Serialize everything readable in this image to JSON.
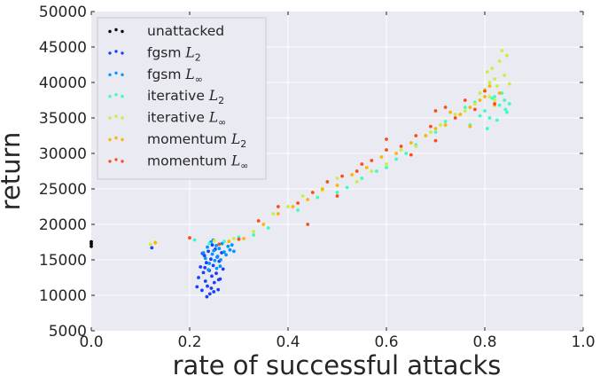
{
  "chart_data": {
    "type": "scatter",
    "title": "",
    "xlabel": "rate of successful attacks",
    "ylabel": "return",
    "xlim": [
      0.0,
      1.0
    ],
    "ylim": [
      5000,
      50000
    ],
    "xticks": [
      "0.0",
      "0.2",
      "0.4",
      "0.6",
      "0.8",
      "1.0"
    ],
    "yticks": [
      "5000",
      "10000",
      "15000",
      "20000",
      "25000",
      "30000",
      "35000",
      "40000",
      "45000",
      "50000"
    ],
    "grid": true,
    "legend_position": "top-left",
    "series": [
      {
        "name": "unattacked",
        "name_main": "unattacked",
        "name_sub": "",
        "name_sup": "",
        "color": "#000000",
        "points": [
          [
            0.0,
            17250
          ],
          [
            0.0,
            16900
          ],
          [
            0.0,
            17550
          ]
        ]
      },
      {
        "name": "fgsm L2",
        "name_main": "fgsm ",
        "name_sub": "2",
        "name_sup": "",
        "color": "#1a3dff",
        "points": [
          [
            0.123,
            16700
          ],
          [
            0.215,
            11200
          ],
          [
            0.218,
            12500
          ],
          [
            0.222,
            14000
          ],
          [
            0.225,
            10700
          ],
          [
            0.228,
            13200
          ],
          [
            0.23,
            15600
          ],
          [
            0.232,
            12000
          ],
          [
            0.234,
            14600
          ],
          [
            0.236,
            11300
          ],
          [
            0.238,
            16200
          ],
          [
            0.24,
            13500
          ],
          [
            0.241,
            10200
          ],
          [
            0.243,
            15100
          ],
          [
            0.245,
            12700
          ],
          [
            0.246,
            17100
          ],
          [
            0.248,
            14200
          ],
          [
            0.25,
            11800
          ],
          [
            0.252,
            16500
          ],
          [
            0.254,
            13100
          ],
          [
            0.256,
            15400
          ],
          [
            0.258,
            10800
          ],
          [
            0.26,
            14800
          ],
          [
            0.262,
            12300
          ],
          [
            0.265,
            16000
          ],
          [
            0.268,
            13700
          ],
          [
            0.235,
            9800
          ],
          [
            0.226,
            15900
          ],
          [
            0.249,
            10500
          ],
          [
            0.259,
            12200
          ],
          [
            0.231,
            13900
          ],
          [
            0.244,
            11000
          ]
        ]
      },
      {
        "name": "fgsm L∞",
        "name_main": "fgsm ",
        "name_sub": "",
        "name_sup": "∞",
        "color": "#0096ff",
        "points": [
          [
            0.228,
            16000
          ],
          [
            0.232,
            15200
          ],
          [
            0.236,
            16800
          ],
          [
            0.24,
            14500
          ],
          [
            0.243,
            17500
          ],
          [
            0.246,
            15800
          ],
          [
            0.249,
            16300
          ],
          [
            0.251,
            14900
          ],
          [
            0.254,
            17000
          ],
          [
            0.257,
            15500
          ],
          [
            0.26,
            16600
          ],
          [
            0.263,
            15000
          ],
          [
            0.266,
            17300
          ],
          [
            0.27,
            16100
          ],
          [
            0.274,
            15700
          ],
          [
            0.278,
            16900
          ],
          [
            0.282,
            16400
          ],
          [
            0.286,
            17100
          ],
          [
            0.29,
            16200
          ],
          [
            0.255,
            13800
          ],
          [
            0.238,
            13600
          ],
          [
            0.248,
            17800
          ],
          [
            0.262,
            14100
          ]
        ]
      },
      {
        "name": "iterative L2",
        "name_main": "iterative ",
        "name_sub": "2",
        "name_sup": "",
        "color": "#38ffc0",
        "points": [
          [
            0.21,
            17800
          ],
          [
            0.24,
            17300
          ],
          [
            0.27,
            17600
          ],
          [
            0.3,
            18200
          ],
          [
            0.33,
            18500
          ],
          [
            0.36,
            19500
          ],
          [
            0.42,
            22000
          ],
          [
            0.46,
            23800
          ],
          [
            0.5,
            24500
          ],
          [
            0.52,
            25200
          ],
          [
            0.55,
            26500
          ],
          [
            0.58,
            27500
          ],
          [
            0.6,
            28000
          ],
          [
            0.62,
            29200
          ],
          [
            0.64,
            30000
          ],
          [
            0.66,
            31200
          ],
          [
            0.68,
            32500
          ],
          [
            0.7,
            33000
          ],
          [
            0.72,
            34500
          ],
          [
            0.74,
            35500
          ],
          [
            0.76,
            36500
          ],
          [
            0.77,
            34000
          ],
          [
            0.78,
            37200
          ],
          [
            0.79,
            35300
          ],
          [
            0.8,
            36000
          ],
          [
            0.81,
            35000
          ],
          [
            0.82,
            38000
          ],
          [
            0.83,
            36800
          ],
          [
            0.84,
            37500
          ],
          [
            0.845,
            35800
          ],
          [
            0.85,
            37000
          ],
          [
            0.805,
            33500
          ],
          [
            0.815,
            37800
          ],
          [
            0.825,
            34700
          ],
          [
            0.835,
            38500
          ],
          [
            0.842,
            36200
          ]
        ]
      },
      {
        "name": "iterative L∞",
        "name_main": "iterative ",
        "name_sub": "",
        "name_sup": "∞",
        "color": "#c8f03c",
        "points": [
          [
            0.12,
            17200
          ],
          [
            0.13,
            17500
          ],
          [
            0.25,
            17700
          ],
          [
            0.29,
            18000
          ],
          [
            0.33,
            19000
          ],
          [
            0.37,
            21500
          ],
          [
            0.4,
            22500
          ],
          [
            0.43,
            24000
          ],
          [
            0.47,
            24800
          ],
          [
            0.5,
            26500
          ],
          [
            0.54,
            26000
          ],
          [
            0.57,
            27500
          ],
          [
            0.6,
            28500
          ],
          [
            0.63,
            30500
          ],
          [
            0.66,
            31000
          ],
          [
            0.69,
            33000
          ],
          [
            0.71,
            34000
          ],
          [
            0.74,
            35500
          ],
          [
            0.76,
            36000
          ],
          [
            0.78,
            37000
          ],
          [
            0.79,
            38500
          ],
          [
            0.8,
            39000
          ],
          [
            0.805,
            41500
          ],
          [
            0.81,
            40000
          ],
          [
            0.815,
            42000
          ],
          [
            0.82,
            40500
          ],
          [
            0.825,
            39500
          ],
          [
            0.83,
            43000
          ],
          [
            0.835,
            44500
          ],
          [
            0.84,
            41000
          ],
          [
            0.845,
            43800
          ],
          [
            0.85,
            39800
          ],
          [
            0.81,
            38000
          ],
          [
            0.82,
            37500
          ]
        ]
      },
      {
        "name": "momentum L2",
        "name_main": "momentum ",
        "name_sub": "2",
        "name_sup": "",
        "color": "#ffb400",
        "points": [
          [
            0.13,
            17400
          ],
          [
            0.28,
            17600
          ],
          [
            0.31,
            18000
          ],
          [
            0.35,
            20000
          ],
          [
            0.38,
            21500
          ],
          [
            0.41,
            22500
          ],
          [
            0.44,
            23500
          ],
          [
            0.47,
            25000
          ],
          [
            0.5,
            25500
          ],
          [
            0.53,
            27000
          ],
          [
            0.56,
            28000
          ],
          [
            0.59,
            29500
          ],
          [
            0.62,
            30000
          ],
          [
            0.65,
            31500
          ],
          [
            0.68,
            32500
          ],
          [
            0.7,
            33500
          ],
          [
            0.72,
            34000
          ],
          [
            0.75,
            35500
          ],
          [
            0.77,
            36500
          ],
          [
            0.79,
            37500
          ],
          [
            0.8,
            38000
          ],
          [
            0.81,
            39500
          ],
          [
            0.82,
            36800
          ],
          [
            0.83,
            38500
          ],
          [
            0.77,
            33800
          ],
          [
            0.73,
            35800
          ]
        ]
      },
      {
        "name": "momentum L∞",
        "name_main": "momentum ",
        "name_sub": "",
        "name_sup": "∞",
        "color": "#ff4a1a",
        "points": [
          [
            0.2,
            18100
          ],
          [
            0.26,
            17200
          ],
          [
            0.3,
            17900
          ],
          [
            0.34,
            20500
          ],
          [
            0.38,
            22500
          ],
          [
            0.42,
            23000
          ],
          [
            0.45,
            24500
          ],
          [
            0.48,
            26000
          ],
          [
            0.51,
            26800
          ],
          [
            0.54,
            27500
          ],
          [
            0.57,
            29000
          ],
          [
            0.6,
            30500
          ],
          [
            0.63,
            31000
          ],
          [
            0.66,
            32500
          ],
          [
            0.69,
            33800
          ],
          [
            0.7,
            36000
          ],
          [
            0.72,
            36500
          ],
          [
            0.74,
            35000
          ],
          [
            0.76,
            37500
          ],
          [
            0.78,
            36200
          ],
          [
            0.8,
            38800
          ],
          [
            0.82,
            37000
          ],
          [
            0.6,
            32000
          ],
          [
            0.65,
            29800
          ],
          [
            0.55,
            28500
          ],
          [
            0.44,
            20000
          ],
          [
            0.5,
            24000
          ],
          [
            0.7,
            31800
          ]
        ]
      }
    ]
  }
}
